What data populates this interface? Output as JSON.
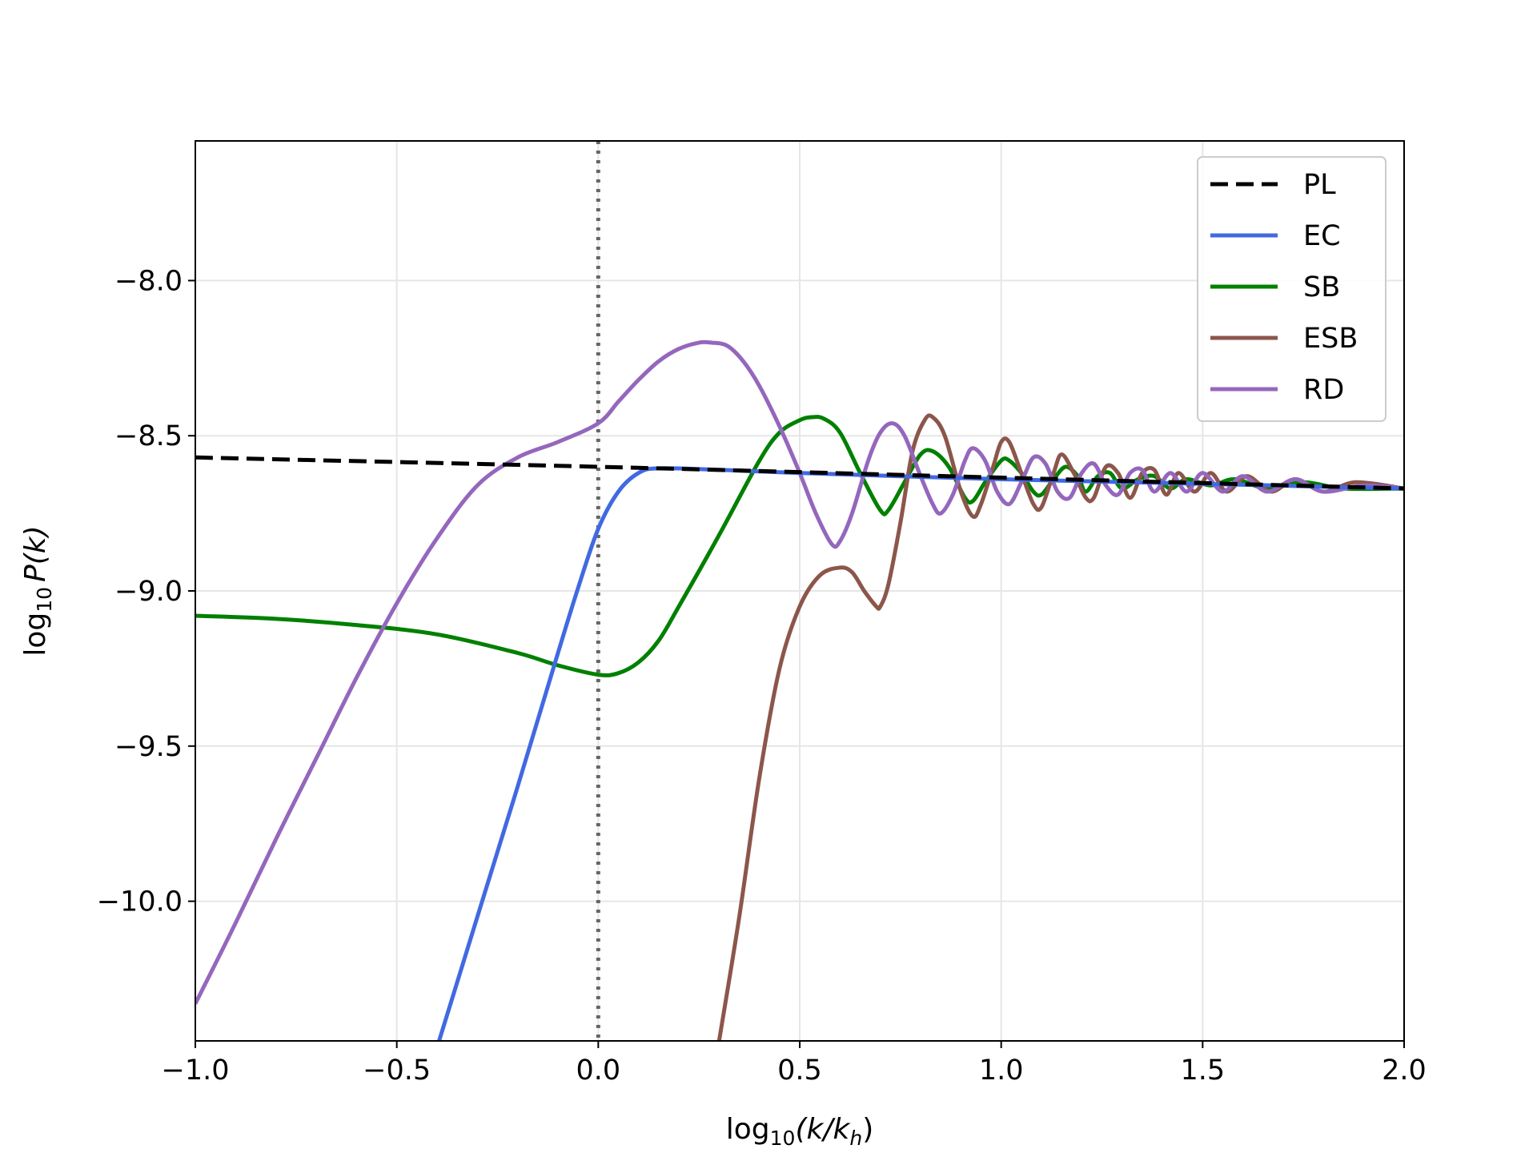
{
  "chart_data": {
    "type": "line",
    "title": "",
    "xlabel": {
      "base": "log",
      "sub": "10",
      "expr": "(k/k",
      "sub2": "h",
      "close": ")"
    },
    "ylabel": {
      "base": "log",
      "sub": "10",
      "expr": "P(k)"
    },
    "xlim": [
      -1.0,
      2.0
    ],
    "ylim": [
      -10.45,
      -7.55
    ],
    "x_ticks": [
      -1.0,
      -0.5,
      0.0,
      0.5,
      1.0,
      1.5,
      2.0
    ],
    "x_tick_labels": [
      "−1.0",
      "−0.5",
      "0.0",
      "0.5",
      "1.0",
      "1.5",
      "2.0"
    ],
    "y_ticks": [
      -8.0,
      -8.5,
      -9.0,
      -9.5,
      -10.0
    ],
    "y_tick_labels": [
      "−8.0",
      "−8.5",
      "−9.0",
      "−9.5",
      "−10.0"
    ],
    "grid": true,
    "legend_position": "top-right",
    "vertical_reference_line": {
      "x": 0.0,
      "style": "dotted",
      "color": "#666666"
    },
    "series": [
      {
        "name": "PL",
        "color": "#000000",
        "style": "dashed",
        "points": [
          [
            -1.0,
            -8.57
          ],
          [
            0.0,
            -8.6
          ],
          [
            1.0,
            -8.635
          ],
          [
            2.0,
            -8.67
          ]
        ]
      },
      {
        "name": "EC",
        "color": "#4169e1",
        "style": "solid",
        "points": [
          [
            -0.395,
            -10.45
          ],
          [
            -0.3,
            -10.05
          ],
          [
            -0.2,
            -9.63
          ],
          [
            -0.1,
            -9.2
          ],
          [
            -0.05,
            -8.99
          ],
          [
            0.0,
            -8.8
          ],
          [
            0.05,
            -8.68
          ],
          [
            0.1,
            -8.62
          ],
          [
            0.15,
            -8.605
          ],
          [
            0.3,
            -8.61
          ],
          [
            0.5,
            -8.62
          ],
          [
            1.0,
            -8.64
          ],
          [
            1.5,
            -8.655
          ],
          [
            2.0,
            -8.67
          ]
        ]
      },
      {
        "name": "SB",
        "color": "#008000",
        "style": "solid",
        "points": [
          [
            -1.0,
            -9.08
          ],
          [
            -0.8,
            -9.09
          ],
          [
            -0.6,
            -9.11
          ],
          [
            -0.4,
            -9.14
          ],
          [
            -0.2,
            -9.2
          ],
          [
            -0.1,
            -9.24
          ],
          [
            0.0,
            -9.27
          ],
          [
            0.05,
            -9.265
          ],
          [
            0.1,
            -9.23
          ],
          [
            0.15,
            -9.16
          ],
          [
            0.2,
            -9.05
          ],
          [
            0.3,
            -8.82
          ],
          [
            0.4,
            -8.58
          ],
          [
            0.45,
            -8.49
          ],
          [
            0.5,
            -8.45
          ],
          [
            0.53,
            -8.44
          ],
          [
            0.56,
            -8.445
          ],
          [
            0.6,
            -8.49
          ],
          [
            0.65,
            -8.62
          ],
          [
            0.7,
            -8.74
          ],
          [
            0.72,
            -8.74
          ],
          [
            0.76,
            -8.65
          ],
          [
            0.8,
            -8.56
          ],
          [
            0.83,
            -8.55
          ],
          [
            0.87,
            -8.6
          ],
          [
            0.91,
            -8.7
          ],
          [
            0.93,
            -8.71
          ],
          [
            0.96,
            -8.65
          ],
          [
            1.0,
            -8.58
          ],
          [
            1.02,
            -8.58
          ],
          [
            1.05,
            -8.62
          ],
          [
            1.08,
            -8.68
          ],
          [
            1.1,
            -8.69
          ],
          [
            1.13,
            -8.64
          ],
          [
            1.16,
            -8.6
          ],
          [
            1.19,
            -8.63
          ],
          [
            1.21,
            -8.68
          ],
          [
            1.24,
            -8.63
          ],
          [
            1.27,
            -8.62
          ],
          [
            1.3,
            -8.67
          ],
          [
            1.34,
            -8.64
          ],
          [
            1.38,
            -8.63
          ],
          [
            1.42,
            -8.67
          ],
          [
            1.46,
            -8.64
          ],
          [
            1.52,
            -8.66
          ],
          [
            1.58,
            -8.64
          ],
          [
            1.66,
            -8.67
          ],
          [
            1.75,
            -8.65
          ],
          [
            1.85,
            -8.67
          ],
          [
            2.0,
            -8.67
          ]
        ]
      },
      {
        "name": "ESB",
        "color": "#8c564b",
        "style": "solid",
        "points": [
          [
            0.3,
            -10.45
          ],
          [
            0.35,
            -10.05
          ],
          [
            0.4,
            -9.6
          ],
          [
            0.45,
            -9.25
          ],
          [
            0.5,
            -9.05
          ],
          [
            0.55,
            -8.95
          ],
          [
            0.6,
            -8.925
          ],
          [
            0.63,
            -8.94
          ],
          [
            0.66,
            -9.0
          ],
          [
            0.69,
            -9.05
          ],
          [
            0.7,
            -9.05
          ],
          [
            0.72,
            -8.98
          ],
          [
            0.75,
            -8.78
          ],
          [
            0.78,
            -8.55
          ],
          [
            0.81,
            -8.45
          ],
          [
            0.83,
            -8.44
          ],
          [
            0.86,
            -8.5
          ],
          [
            0.9,
            -8.68
          ],
          [
            0.93,
            -8.76
          ],
          [
            0.95,
            -8.72
          ],
          [
            0.98,
            -8.6
          ],
          [
            1.0,
            -8.52
          ],
          [
            1.02,
            -8.52
          ],
          [
            1.05,
            -8.62
          ],
          [
            1.08,
            -8.72
          ],
          [
            1.1,
            -8.73
          ],
          [
            1.13,
            -8.62
          ],
          [
            1.15,
            -8.56
          ],
          [
            1.18,
            -8.62
          ],
          [
            1.21,
            -8.7
          ],
          [
            1.23,
            -8.7
          ],
          [
            1.26,
            -8.6
          ],
          [
            1.29,
            -8.62
          ],
          [
            1.32,
            -8.7
          ],
          [
            1.35,
            -8.62
          ],
          [
            1.38,
            -8.61
          ],
          [
            1.41,
            -8.69
          ],
          [
            1.44,
            -8.62
          ],
          [
            1.48,
            -8.68
          ],
          [
            1.52,
            -8.62
          ],
          [
            1.56,
            -8.68
          ],
          [
            1.61,
            -8.63
          ],
          [
            1.67,
            -8.68
          ],
          [
            1.73,
            -8.64
          ],
          [
            1.8,
            -8.68
          ],
          [
            1.88,
            -8.65
          ],
          [
            2.0,
            -8.67
          ]
        ]
      },
      {
        "name": "RD",
        "color": "#9467bd",
        "style": "solid",
        "points": [
          [
            -1.0,
            -10.33
          ],
          [
            -0.9,
            -10.07
          ],
          [
            -0.8,
            -9.8
          ],
          [
            -0.7,
            -9.54
          ],
          [
            -0.6,
            -9.28
          ],
          [
            -0.5,
            -9.04
          ],
          [
            -0.4,
            -8.83
          ],
          [
            -0.3,
            -8.66
          ],
          [
            -0.2,
            -8.57
          ],
          [
            -0.1,
            -8.52
          ],
          [
            0.0,
            -8.46
          ],
          [
            0.05,
            -8.39
          ],
          [
            0.1,
            -8.32
          ],
          [
            0.15,
            -8.26
          ],
          [
            0.2,
            -8.22
          ],
          [
            0.25,
            -8.2
          ],
          [
            0.28,
            -8.2
          ],
          [
            0.32,
            -8.21
          ],
          [
            0.36,
            -8.26
          ],
          [
            0.4,
            -8.34
          ],
          [
            0.45,
            -8.47
          ],
          [
            0.5,
            -8.62
          ],
          [
            0.54,
            -8.75
          ],
          [
            0.58,
            -8.85
          ],
          [
            0.6,
            -8.84
          ],
          [
            0.63,
            -8.75
          ],
          [
            0.67,
            -8.58
          ],
          [
            0.7,
            -8.49
          ],
          [
            0.73,
            -8.46
          ],
          [
            0.76,
            -8.5
          ],
          [
            0.8,
            -8.63
          ],
          [
            0.83,
            -8.72
          ],
          [
            0.85,
            -8.75
          ],
          [
            0.88,
            -8.69
          ],
          [
            0.91,
            -8.58
          ],
          [
            0.93,
            -8.54
          ],
          [
            0.96,
            -8.58
          ],
          [
            0.99,
            -8.68
          ],
          [
            1.02,
            -8.72
          ],
          [
            1.05,
            -8.65
          ],
          [
            1.08,
            -8.57
          ],
          [
            1.11,
            -8.59
          ],
          [
            1.14,
            -8.68
          ],
          [
            1.17,
            -8.7
          ],
          [
            1.2,
            -8.62
          ],
          [
            1.23,
            -8.59
          ],
          [
            1.26,
            -8.66
          ],
          [
            1.29,
            -8.69
          ],
          [
            1.32,
            -8.62
          ],
          [
            1.35,
            -8.61
          ],
          [
            1.38,
            -8.68
          ],
          [
            1.42,
            -8.62
          ],
          [
            1.46,
            -8.68
          ],
          [
            1.5,
            -8.62
          ],
          [
            1.55,
            -8.68
          ],
          [
            1.6,
            -8.63
          ],
          [
            1.66,
            -8.68
          ],
          [
            1.73,
            -8.64
          ],
          [
            1.8,
            -8.68
          ],
          [
            1.9,
            -8.66
          ],
          [
            2.0,
            -8.67
          ]
        ]
      }
    ]
  }
}
